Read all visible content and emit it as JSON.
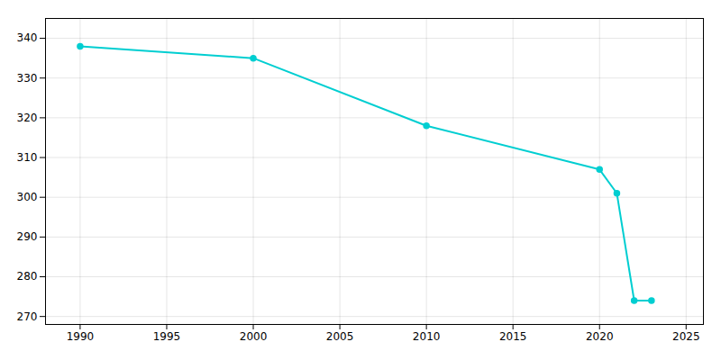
{
  "chart_data": {
    "type": "line",
    "x": [
      1990,
      2000,
      2010,
      2020,
      2021,
      2022,
      2023
    ],
    "values": [
      338,
      335,
      318,
      307,
      301,
      274,
      274
    ],
    "color": "#00CED1",
    "marker": "circle",
    "xlim": [
      1988,
      2026
    ],
    "ylim": [
      268,
      345
    ],
    "xticks": [
      1990,
      1995,
      2000,
      2005,
      2010,
      2015,
      2020,
      2025
    ],
    "yticks": [
      270,
      280,
      290,
      300,
      310,
      320,
      330,
      340
    ],
    "grid": true
  }
}
